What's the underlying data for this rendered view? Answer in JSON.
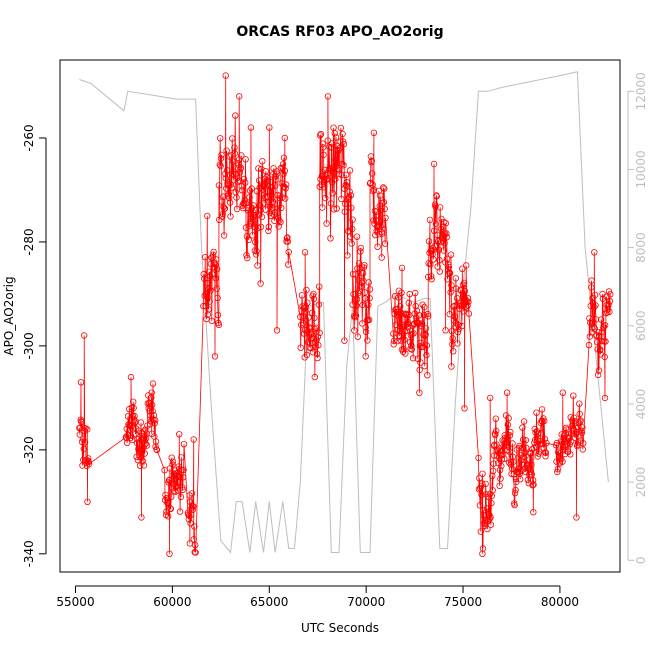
{
  "chart_data": {
    "type": "scatter",
    "title": "ORCAS RF03 APO_AO2orig",
    "xlabel": "UTC Seconds",
    "ylabel": "APO_AO2orig",
    "xlim": [
      54200,
      83100
    ],
    "ylim": [
      -343.5,
      -245
    ],
    "y2lim": [
      -300,
      12800
    ],
    "x_ticks": [
      55000,
      60000,
      65000,
      70000,
      75000,
      80000
    ],
    "y_ticks": [
      -340,
      -320,
      -300,
      -280,
      -260
    ],
    "y2_ticks": [
      0,
      2000,
      4000,
      6000,
      8000,
      10000,
      12000
    ],
    "grid": false,
    "legend": "none",
    "colors": {
      "primary": "#ff0000",
      "secondary": "#bebebe",
      "frame": "#000000"
    },
    "series": [
      {
        "axis": "left",
        "style": "points-and-lines",
        "segments": [
          {
            "x": [
              55200,
              55700
            ],
            "y_mean": -320,
            "y_noise": 6,
            "spikes": [
              -307,
              -298,
              -330
            ]
          },
          {
            "x": [
              57600,
              59200
            ],
            "y_mean": -317,
            "y_noise": 4,
            "spikes": [
              -306,
              -333,
              -309
            ]
          },
          {
            "x": [
              59600,
              60600
            ],
            "y_mean": -326,
            "y_noise": 4,
            "spikes": [
              -340,
              -317
            ]
          },
          {
            "x": [
              60800,
              61200
            ],
            "y_mean": -330,
            "y_noise": 4,
            "spikes": [
              -338,
              -318
            ]
          },
          {
            "x": [
              61600,
              62400
            ],
            "y_mean": -287,
            "y_noise": 6,
            "spikes": [
              -275,
              -302
            ]
          },
          {
            "x": [
              62400,
              63800
            ],
            "y_mean": -268,
            "y_noise": 7,
            "spikes": [
              -248,
              -252
            ]
          },
          {
            "x": [
              63800,
              64800
            ],
            "y_mean": -277,
            "y_noise": 7,
            "spikes": [
              -258,
              -288
            ]
          },
          {
            "x": [
              64800,
              66000
            ],
            "y_mean": -275,
            "y_noise": 6,
            "spikes": [
              -258,
              -297,
              -260
            ]
          },
          {
            "x": [
              66600,
              67600
            ],
            "y_mean": -295,
            "y_noise": 6,
            "spikes": [
              -282,
              -306
            ]
          },
          {
            "x": [
              67600,
              69300
            ],
            "y_mean": -268,
            "y_noise": 8,
            "spikes": [
              -252,
              -299
            ]
          },
          {
            "x": [
              69300,
              70200
            ],
            "y_mean": -290,
            "y_noise": 6,
            "spikes": [
              -279,
              -302
            ]
          },
          {
            "x": [
              70200,
              71000
            ],
            "y_mean": -270,
            "y_noise": 6,
            "spikes": [
              -259,
              -283
            ]
          },
          {
            "x": [
              71400,
              73200
            ],
            "y_mean": -296,
            "y_noise": 6,
            "spikes": [
              -285,
              -309
            ]
          },
          {
            "x": [
              73200,
              74400
            ],
            "y_mean": -281,
            "y_noise": 6,
            "spikes": [
              -265,
              -297
            ]
          },
          {
            "x": [
              74400,
              75300
            ],
            "y_mean": -296,
            "y_noise": 5,
            "spikes": [
              -287,
              -312
            ]
          },
          {
            "x": [
              75800,
              76600
            ],
            "y_mean": -327,
            "y_noise": 5,
            "spikes": [
              -340,
              -310
            ]
          },
          {
            "x": [
              76600,
              79300
            ],
            "y_mean": -319,
            "y_noise": 4,
            "spikes": [
              -309,
              -332
            ]
          },
          {
            "x": [
              79800,
              81200
            ],
            "y_mean": -319,
            "y_noise": 4,
            "spikes": [
              -309,
              -333
            ]
          },
          {
            "x": [
              81500,
              82600
            ],
            "y_mean": -297,
            "y_noise": 5,
            "spikes": [
              -282,
              -310
            ]
          }
        ]
      },
      {
        "axis": "right",
        "style": "line",
        "x": [
          55200,
          55800,
          57500,
          57700,
          59000,
          60200,
          61200,
          61500,
          62000,
          62500,
          63000,
          63300,
          63600,
          64000,
          64300,
          64700,
          65000,
          65300,
          65700,
          66000,
          66300,
          66600,
          67000,
          67800,
          68200,
          68600,
          69000,
          69300,
          69700,
          70200,
          70600,
          71000,
          71500,
          72000,
          72500,
          73000,
          73300,
          73800,
          74200,
          74600,
          75000,
          75400,
          75800,
          76300,
          77000,
          78000,
          79000,
          80000,
          80900,
          81300,
          82500
        ],
        "y": [
          12300,
          12200,
          11500,
          12000,
          11900,
          11800,
          11800,
          8000,
          4000,
          500,
          200,
          1500,
          1500,
          200,
          1500,
          200,
          1500,
          200,
          1500,
          300,
          300,
          2000,
          6500,
          6600,
          200,
          200,
          5000,
          6500,
          200,
          200,
          6500,
          6600,
          6800,
          6700,
          6600,
          6700,
          6700,
          300,
          300,
          4000,
          7000,
          9000,
          12000,
          12000,
          12100,
          12200,
          12300,
          12400,
          12500,
          8000,
          2000
        ]
      }
    ]
  }
}
